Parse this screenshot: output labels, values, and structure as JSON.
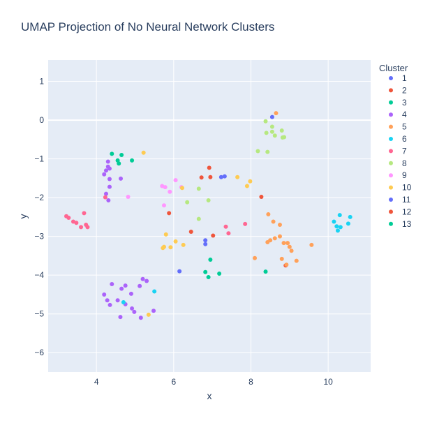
{
  "chart_data": {
    "type": "scatter",
    "title": "UMAP Projection of No Neural Network Clusters",
    "xlabel": "x",
    "ylabel": "y",
    "xlim": [
      2.75,
      11.1
    ],
    "ylim": [
      -6.5,
      1.55
    ],
    "xticks": [
      4,
      6,
      8,
      10
    ],
    "yticks": [
      1,
      0,
      -1,
      -2,
      -3,
      -4,
      -5,
      -6
    ],
    "xtick_labels": [
      "4",
      "6",
      "8",
      "10"
    ],
    "ytick_labels": [
      "1",
      "0",
      "−1",
      "−2",
      "−3",
      "−4",
      "−5",
      "−6"
    ],
    "grid": true,
    "legend_title": "Cluster",
    "legend_position": "right",
    "series": [
      {
        "name": "1",
        "color": "#636efa",
        "points": [
          [
            8.55,
            0.08
          ],
          [
            6.82,
            -3.1
          ]
        ]
      },
      {
        "name": "2",
        "color": "#ef553b",
        "points": [
          [
            8.9,
            -3.75
          ]
        ]
      },
      {
        "name": "3",
        "color": "#00cc96",
        "points": [
          [
            6.82,
            -3.92
          ],
          [
            6.95,
            -3.6
          ],
          [
            6.9,
            -4.05
          ],
          [
            7.18,
            -3.96
          ],
          [
            8.38,
            -3.91
          ]
        ]
      },
      {
        "name": "4",
        "color": "#ab63fa",
        "points": [
          [
            4.3,
            -1.07
          ],
          [
            4.3,
            -1.2
          ],
          [
            4.34,
            -1.25
          ],
          [
            4.25,
            -1.3
          ],
          [
            4.2,
            -1.4
          ],
          [
            4.34,
            -1.52
          ],
          [
            4.63,
            -1.51
          ],
          [
            4.34,
            -1.72
          ],
          [
            4.25,
            -1.9
          ],
          [
            4.31,
            -2.07
          ],
          [
            4.4,
            -4.23
          ],
          [
            4.2,
            -4.5
          ],
          [
            4.28,
            -4.65
          ],
          [
            4.35,
            -4.77
          ],
          [
            4.75,
            -4.27
          ],
          [
            4.65,
            -4.35
          ],
          [
            4.9,
            -4.48
          ],
          [
            4.55,
            -4.65
          ],
          [
            4.75,
            -4.75
          ],
          [
            4.92,
            -4.86
          ],
          [
            4.98,
            -4.95
          ],
          [
            4.62,
            -5.08
          ],
          [
            5.12,
            -4.28
          ],
          [
            5.2,
            -4.1
          ],
          [
            5.3,
            -4.15
          ],
          [
            5.48,
            -4.92
          ],
          [
            5.15,
            -5.1
          ]
        ]
      },
      {
        "name": "5",
        "color": "#ffa15a",
        "points": [
          [
            8.65,
            0.18
          ],
          [
            8.1,
            -3.56
          ],
          [
            8.45,
            -2.43
          ],
          [
            8.58,
            -2.62
          ],
          [
            8.75,
            -2.7
          ],
          [
            8.43,
            -3.15
          ],
          [
            8.5,
            -3.1
          ],
          [
            8.62,
            -3.05
          ],
          [
            8.75,
            -3.0
          ],
          [
            8.85,
            -3.17
          ],
          [
            8.95,
            -3.17
          ],
          [
            9.0,
            -3.27
          ],
          [
            9.05,
            -3.37
          ],
          [
            9.18,
            -3.63
          ],
          [
            8.8,
            -3.58
          ],
          [
            8.92,
            -3.73
          ],
          [
            9.57,
            -3.22
          ]
        ]
      },
      {
        "name": "6",
        "color": "#19d3f3",
        "points": [
          [
            4.7,
            -4.7
          ],
          [
            5.5,
            -4.42
          ],
          [
            10.15,
            -2.62
          ],
          [
            10.22,
            -2.74
          ],
          [
            10.25,
            -2.85
          ],
          [
            10.32,
            -2.76
          ],
          [
            10.3,
            -2.45
          ],
          [
            10.52,
            -2.67
          ],
          [
            10.57,
            -2.5
          ]
        ]
      },
      {
        "name": "7",
        "color": "#ff6692",
        "points": [
          [
            3.22,
            -2.48
          ],
          [
            3.28,
            -2.52
          ],
          [
            3.4,
            -2.62
          ],
          [
            3.48,
            -2.65
          ],
          [
            3.6,
            -2.76
          ],
          [
            3.68,
            -2.4
          ],
          [
            3.73,
            -2.7
          ],
          [
            3.77,
            -2.76
          ],
          [
            4.23,
            -1.99
          ],
          [
            7.35,
            -2.75
          ],
          [
            7.42,
            -2.92
          ],
          [
            7.85,
            -2.68
          ]
        ]
      },
      {
        "name": "8",
        "color": "#b6e880",
        "points": [
          [
            8.38,
            -0.03
          ],
          [
            8.4,
            -0.33
          ],
          [
            8.55,
            -0.17
          ],
          [
            8.55,
            -0.3
          ],
          [
            8.62,
            -0.4
          ],
          [
            8.82,
            -0.45
          ],
          [
            8.8,
            -0.27
          ],
          [
            8.86,
            -0.44
          ],
          [
            8.18,
            -0.8
          ],
          [
            8.43,
            -0.82
          ],
          [
            6.65,
            -1.77
          ],
          [
            6.35,
            -2.12
          ],
          [
            6.9,
            -2.07
          ],
          [
            6.65,
            -2.55
          ]
        ]
      },
      {
        "name": "9",
        "color": "#ff97ff",
        "points": [
          [
            4.82,
            -1.98
          ],
          [
            6.05,
            -1.55
          ],
          [
            5.7,
            -1.7
          ],
          [
            5.78,
            -1.73
          ],
          [
            5.9,
            -1.85
          ],
          [
            6.2,
            -1.73
          ],
          [
            5.75,
            -2.2
          ]
        ]
      },
      {
        "name": "10",
        "color": "#fecb52",
        "points": [
          [
            5.22,
            -0.84
          ],
          [
            5.35,
            -5.02
          ],
          [
            5.8,
            -2.95
          ],
          [
            5.72,
            -3.3
          ],
          [
            5.75,
            -3.27
          ],
          [
            5.92,
            -3.28
          ],
          [
            6.05,
            -3.13
          ],
          [
            6.25,
            -3.22
          ],
          [
            6.22,
            -1.75
          ],
          [
            7.65,
            -1.47
          ],
          [
            7.9,
            -1.7
          ],
          [
            7.98,
            -1.58
          ]
        ]
      },
      {
        "name": "11",
        "color": "#636efa",
        "points": [
          [
            6.82,
            -3.2
          ],
          [
            7.23,
            -1.47
          ],
          [
            7.32,
            -1.45
          ],
          [
            6.15,
            -3.9
          ]
        ]
      },
      {
        "name": "12",
        "color": "#ef553b",
        "points": [
          [
            6.92,
            -1.23
          ],
          [
            6.95,
            -1.47
          ],
          [
            6.72,
            -1.48
          ],
          [
            8.27,
            -1.98
          ],
          [
            5.88,
            -2.4
          ],
          [
            6.45,
            -2.88
          ],
          [
            7.02,
            -2.98
          ]
        ]
      },
      {
        "name": "13",
        "color": "#00cc96",
        "points": [
          [
            4.4,
            -0.87
          ],
          [
            4.55,
            -1.04
          ],
          [
            4.58,
            -1.12
          ],
          [
            4.65,
            -0.9
          ],
          [
            4.92,
            -1.04
          ]
        ]
      }
    ]
  }
}
